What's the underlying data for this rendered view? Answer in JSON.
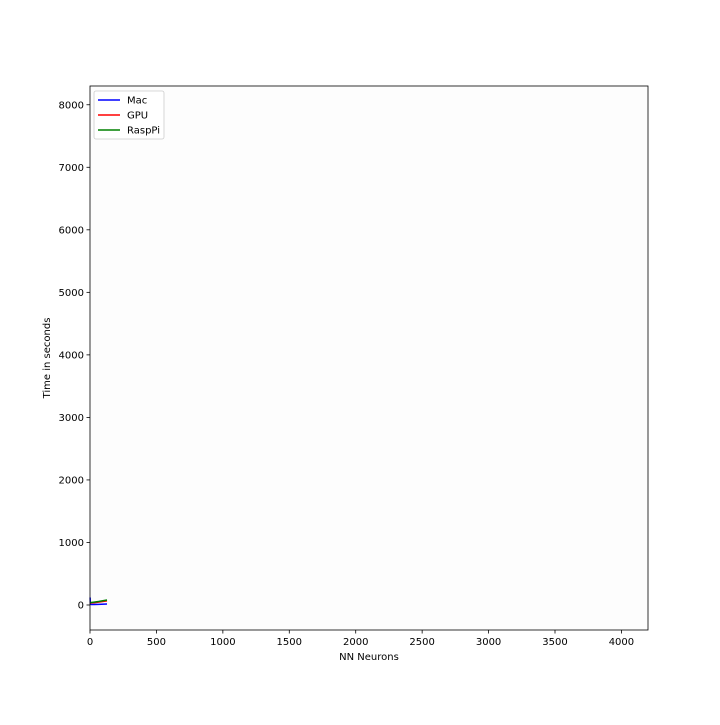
{
  "chart_data": {
    "type": "line",
    "title": "",
    "xlabel": "NN Neurons",
    "ylabel": "Time in seconds",
    "xlim": [
      0,
      4200
    ],
    "ylim": [
      -400,
      8300
    ],
    "xticks": [
      0,
      500,
      1000,
      1500,
      2000,
      2500,
      3000,
      3500,
      4000
    ],
    "yticks": [
      0,
      1000,
      2000,
      3000,
      4000,
      5000,
      6000,
      7000,
      8000
    ],
    "grid": false,
    "legend_position": "top-left",
    "series": [
      {
        "name": "Mac",
        "color": "#0000ff",
        "x": [
          1,
          2,
          4,
          8,
          16,
          32,
          64,
          128
        ],
        "y": [
          120,
          25,
          12,
          8,
          8,
          8,
          10,
          15
        ]
      },
      {
        "name": "GPU",
        "color": "#ff0000",
        "x": [
          1,
          2,
          4,
          8,
          16,
          32,
          64,
          128
        ],
        "y": [
          40,
          35,
          33,
          33,
          34,
          36,
          45,
          65
        ]
      },
      {
        "name": "RaspPi",
        "color": "#008000",
        "x": [
          1,
          2,
          4,
          8,
          16,
          32,
          64,
          128
        ],
        "y": [
          45,
          42,
          40,
          40,
          42,
          46,
          55,
          80
        ]
      }
    ]
  }
}
